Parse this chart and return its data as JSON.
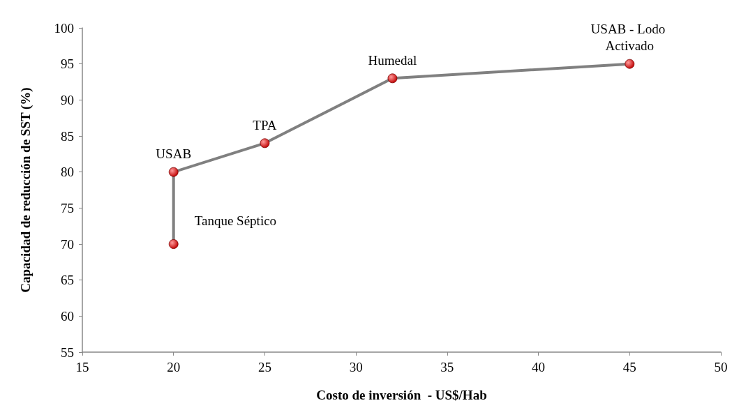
{
  "chart_data": {
    "type": "line",
    "xlabel": "Costo de inversión  - US$/Hab",
    "ylabel": "Capacidad de reducción de SST (%)",
    "x": [
      20,
      20,
      25,
      32,
      45
    ],
    "series": [
      {
        "color": "#808080",
        "colors": [
          "#c00000",
          "#c00000",
          "#c00000",
          "#c00000",
          "#c00000"
        ],
        "values": [
          70,
          80,
          84,
          93,
          95
        ]
      }
    ],
    "xlim": [
      15,
      50
    ],
    "xticks": [
      15,
      20,
      25,
      30,
      35,
      40,
      45,
      50
    ],
    "ylim": [
      55,
      100
    ],
    "yticks": [
      55,
      60,
      65,
      70,
      75,
      80,
      85,
      90,
      95,
      100
    ],
    "grid": false,
    "marker": "circle",
    "line_style": "solid",
    "annotations": [
      {
        "text": "Tanque Séptico",
        "x": 20,
        "y": 70
      },
      {
        "text": "USAB",
        "x": 20,
        "y": 80
      },
      {
        "text": "TPA",
        "x": 25,
        "y": 84
      },
      {
        "text": "Humedal",
        "x": 32,
        "y": 93
      },
      {
        "text": "USAB - Lodo Activado",
        "x": 45,
        "y": 95
      }
    ]
  }
}
